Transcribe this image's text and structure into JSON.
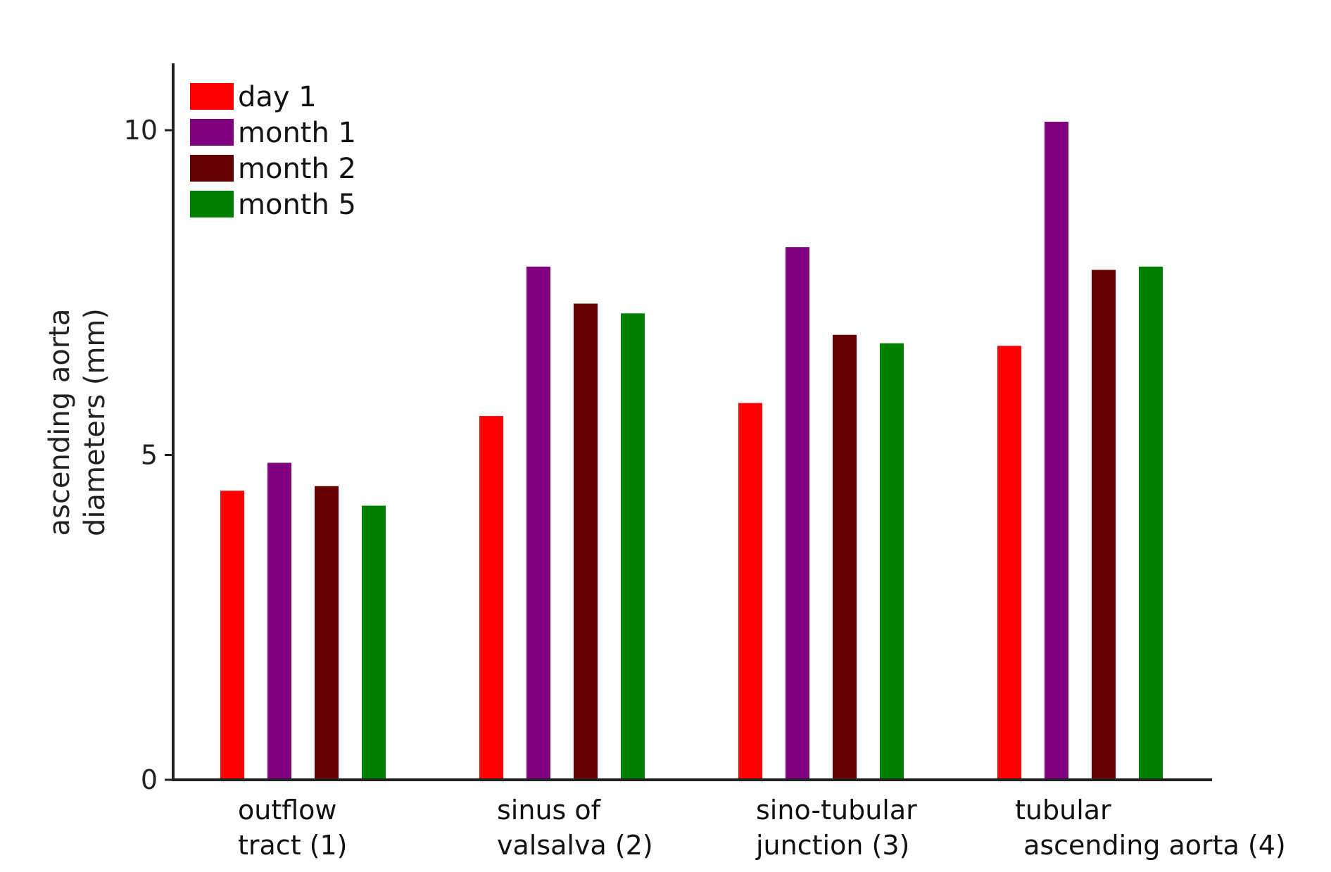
{
  "chart_data": {
    "type": "bar",
    "title": "",
    "ylabel_lines": [
      "ascending aorta",
      "diameters (mm)"
    ],
    "xlabel": "",
    "ylim": [
      0,
      11
    ],
    "yticks": [
      "0",
      "5",
      "10"
    ],
    "ytick_values": [
      0,
      5,
      10
    ],
    "categories": [
      [
        "outflow",
        "tract (1)"
      ],
      [
        "sinus of",
        "valsalva (2)"
      ],
      [
        "sino-tubular",
        "junction (3)"
      ],
      [
        "tubular",
        " ascending aorta (4)"
      ]
    ],
    "series": [
      {
        "name": "day 1",
        "color": "#ff0000",
        "values": [
          4.45,
          5.6,
          5.8,
          6.68
        ]
      },
      {
        "name": "month 1",
        "color": "#800080",
        "values": [
          4.88,
          7.9,
          8.2,
          10.13
        ]
      },
      {
        "name": "month 2",
        "color": "#660000",
        "values": [
          4.52,
          7.33,
          6.85,
          7.85
        ]
      },
      {
        "name": "month 5",
        "color": "#008000",
        "values": [
          4.22,
          7.18,
          6.72,
          7.9
        ]
      }
    ],
    "legend_position": "top-left",
    "grid": false
  }
}
